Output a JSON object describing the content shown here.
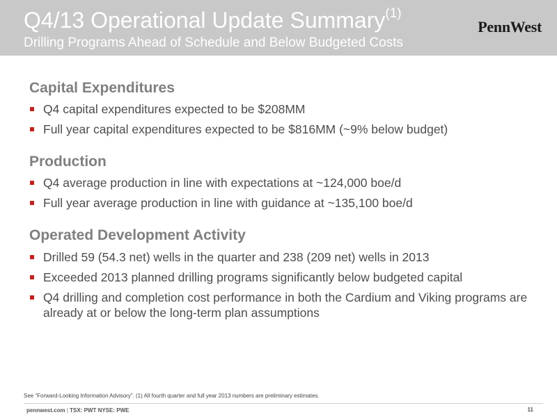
{
  "header": {
    "title": "Q4/13 Operational Update Summary",
    "title_superscript": "(1)",
    "subtitle": "Drilling Programs Ahead of Schedule and Below Budgeted Costs",
    "logo_text": "PennWest"
  },
  "sections": [
    {
      "heading": "Capital Expenditures",
      "bullets": [
        "Q4 capital expenditures expected to be $208MM",
        "Full year capital expenditures expected to be $816MM (~9% below budget)"
      ]
    },
    {
      "heading": "Production",
      "bullets": [
        "Q4 average production in line with expectations at ~124,000 boe/d",
        "Full year average production in line with guidance at ~135,100 boe/d"
      ]
    },
    {
      "heading": "Operated Development Activity",
      "bullets": [
        "Drilled 59 (54.3 net) wells in the quarter and 238 (209 net) wells in 2013",
        "Exceeded 2013 planned drilling programs significantly below budgeted capital",
        "Q4 drilling and completion cost performance in both the Cardium and Viking programs are already at or below the long-term plan assumptions"
      ]
    }
  ],
  "footnote": "See “Forward-Looking Information Advisory”. (1) All fourth quarter and full year 2013 numbers are preliminary estimates.",
  "footer": {
    "website": "pennwest.com",
    "separator": "|",
    "tickers": "TSX: PWT  NYSE: PWE",
    "page_number": "11"
  },
  "colors": {
    "header_bg": "#c8c8c8",
    "heading": "#7f7f7f",
    "bullet": "#c0221f",
    "body_text": "#4d4d4d"
  }
}
